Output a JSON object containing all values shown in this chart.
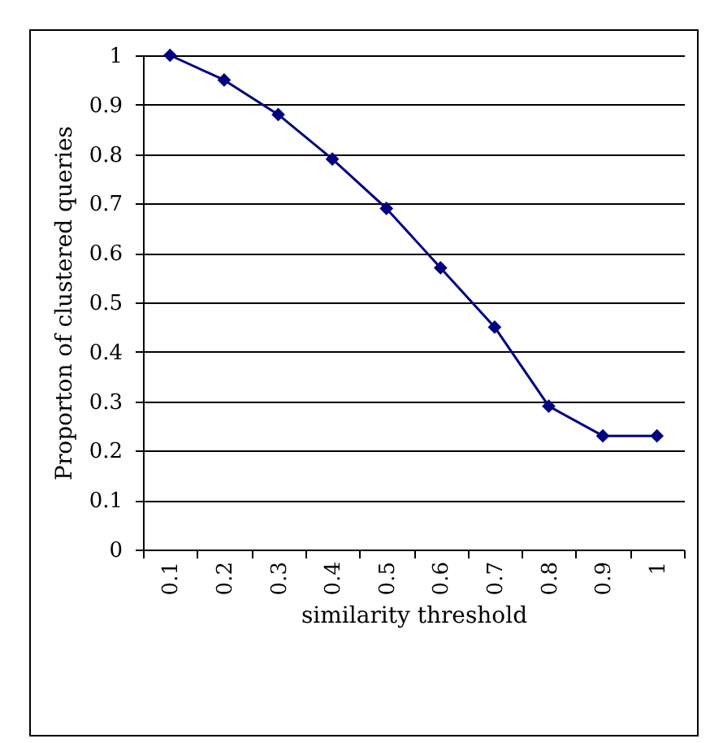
{
  "chart_data": {
    "type": "line",
    "xlabel": "similarity threshold",
    "ylabel": "Proporton of clustered queries",
    "categories": [
      "0.1",
      "0.2",
      "0.3",
      "0.4",
      "0.5",
      "0.6",
      "0.7",
      "0.8",
      "0.9",
      "1"
    ],
    "series": [
      {
        "color": "#000080",
        "values": [
          1,
          0.95,
          0.88,
          0.79,
          0.69,
          0.57,
          0.45,
          0.29,
          0.23,
          0.23
        ]
      }
    ],
    "ylim": [
      0,
      1
    ],
    "yticks": [
      0,
      0.1,
      0.2,
      0.3,
      0.4,
      0.5,
      0.6,
      0.7,
      0.8,
      0.9,
      1
    ],
    "grid": "y",
    "marker": "diamond",
    "line_style": "solid"
  }
}
